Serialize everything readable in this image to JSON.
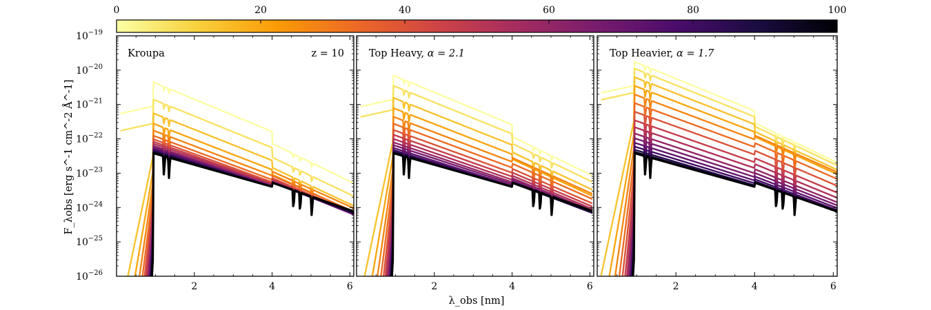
{
  "chart_data": {
    "type": "line",
    "description_scale": "log-y",
    "xlabel": "λ_obs [nm]",
    "ylabel": "F_λobs [erg s^-1 cm^-2 Å^-1]",
    "xlim": [
      0,
      6.1
    ],
    "ylim": [
      1e-26,
      1e-19
    ],
    "y_scale": "log",
    "x_ticks": [
      "2",
      "4",
      "6"
    ],
    "y_ticks": [
      "10^-19",
      "10^-20",
      "10^-21",
      "10^-22",
      "10^-23",
      "10^-24",
      "10^-25",
      "10^-26"
    ],
    "colorbar": {
      "colormap": "inferno_r",
      "range": [
        0,
        100
      ],
      "ticks": [
        "0",
        "20",
        "40",
        "60",
        "80",
        "100"
      ],
      "position": "top"
    },
    "redshift_label": "z = 10",
    "panels": [
      {
        "title": "Kroupa",
        "title_main": "Kroupa",
        "title_alpha": "",
        "nominal_peak": [
          -20.4,
          -20.9,
          -21.3,
          -21.6,
          -21.8,
          -21.95,
          -22.05,
          -22.12,
          -22.18,
          -22.24,
          -22.28,
          -22.32,
          -22.36,
          -22.39,
          -22.42,
          -22.45
        ],
        "series_count": 16,
        "color_values": [
          0,
          7,
          14,
          20,
          27,
          33,
          40,
          47,
          53,
          60,
          67,
          73,
          80,
          87,
          93,
          100
        ]
      },
      {
        "title": "Top Heavy, α = 2.1",
        "title_main": "Top Heavy, ",
        "title_alpha": "α = 2.1",
        "nominal_peak": [
          -20.2,
          -20.5,
          -20.85,
          -21.15,
          -21.4,
          -21.6,
          -21.78,
          -21.92,
          -22.04,
          -22.14,
          -22.22,
          -22.3,
          -22.36,
          -22.4,
          -22.43,
          -22.45
        ],
        "series_count": 16,
        "color_values": [
          0,
          7,
          14,
          20,
          27,
          33,
          40,
          47,
          53,
          60,
          67,
          73,
          80,
          87,
          93,
          100
        ]
      },
      {
        "title": "Top Heavier, α = 1.7",
        "title_main": "Top Heavier, ",
        "title_alpha": "α = 1.7",
        "nominal_peak": [
          -19.8,
          -20.0,
          -20.25,
          -20.5,
          -20.75,
          -21.0,
          -21.25,
          -21.5,
          -21.7,
          -21.88,
          -22.02,
          -22.15,
          -22.26,
          -22.35,
          -22.41,
          -22.45
        ],
        "series_count": 16,
        "color_values": [
          0,
          7,
          14,
          20,
          27,
          33,
          40,
          47,
          53,
          60,
          67,
          73,
          80,
          87,
          93,
          100
        ]
      }
    ],
    "inferno_stops": [
      "#fcffa4",
      "#f7d13d",
      "#fb9b06",
      "#ed6925",
      "#cf4446",
      "#a52c60",
      "#781c6d",
      "#4a0c6b",
      "#1b0c41",
      "#000004"
    ]
  }
}
